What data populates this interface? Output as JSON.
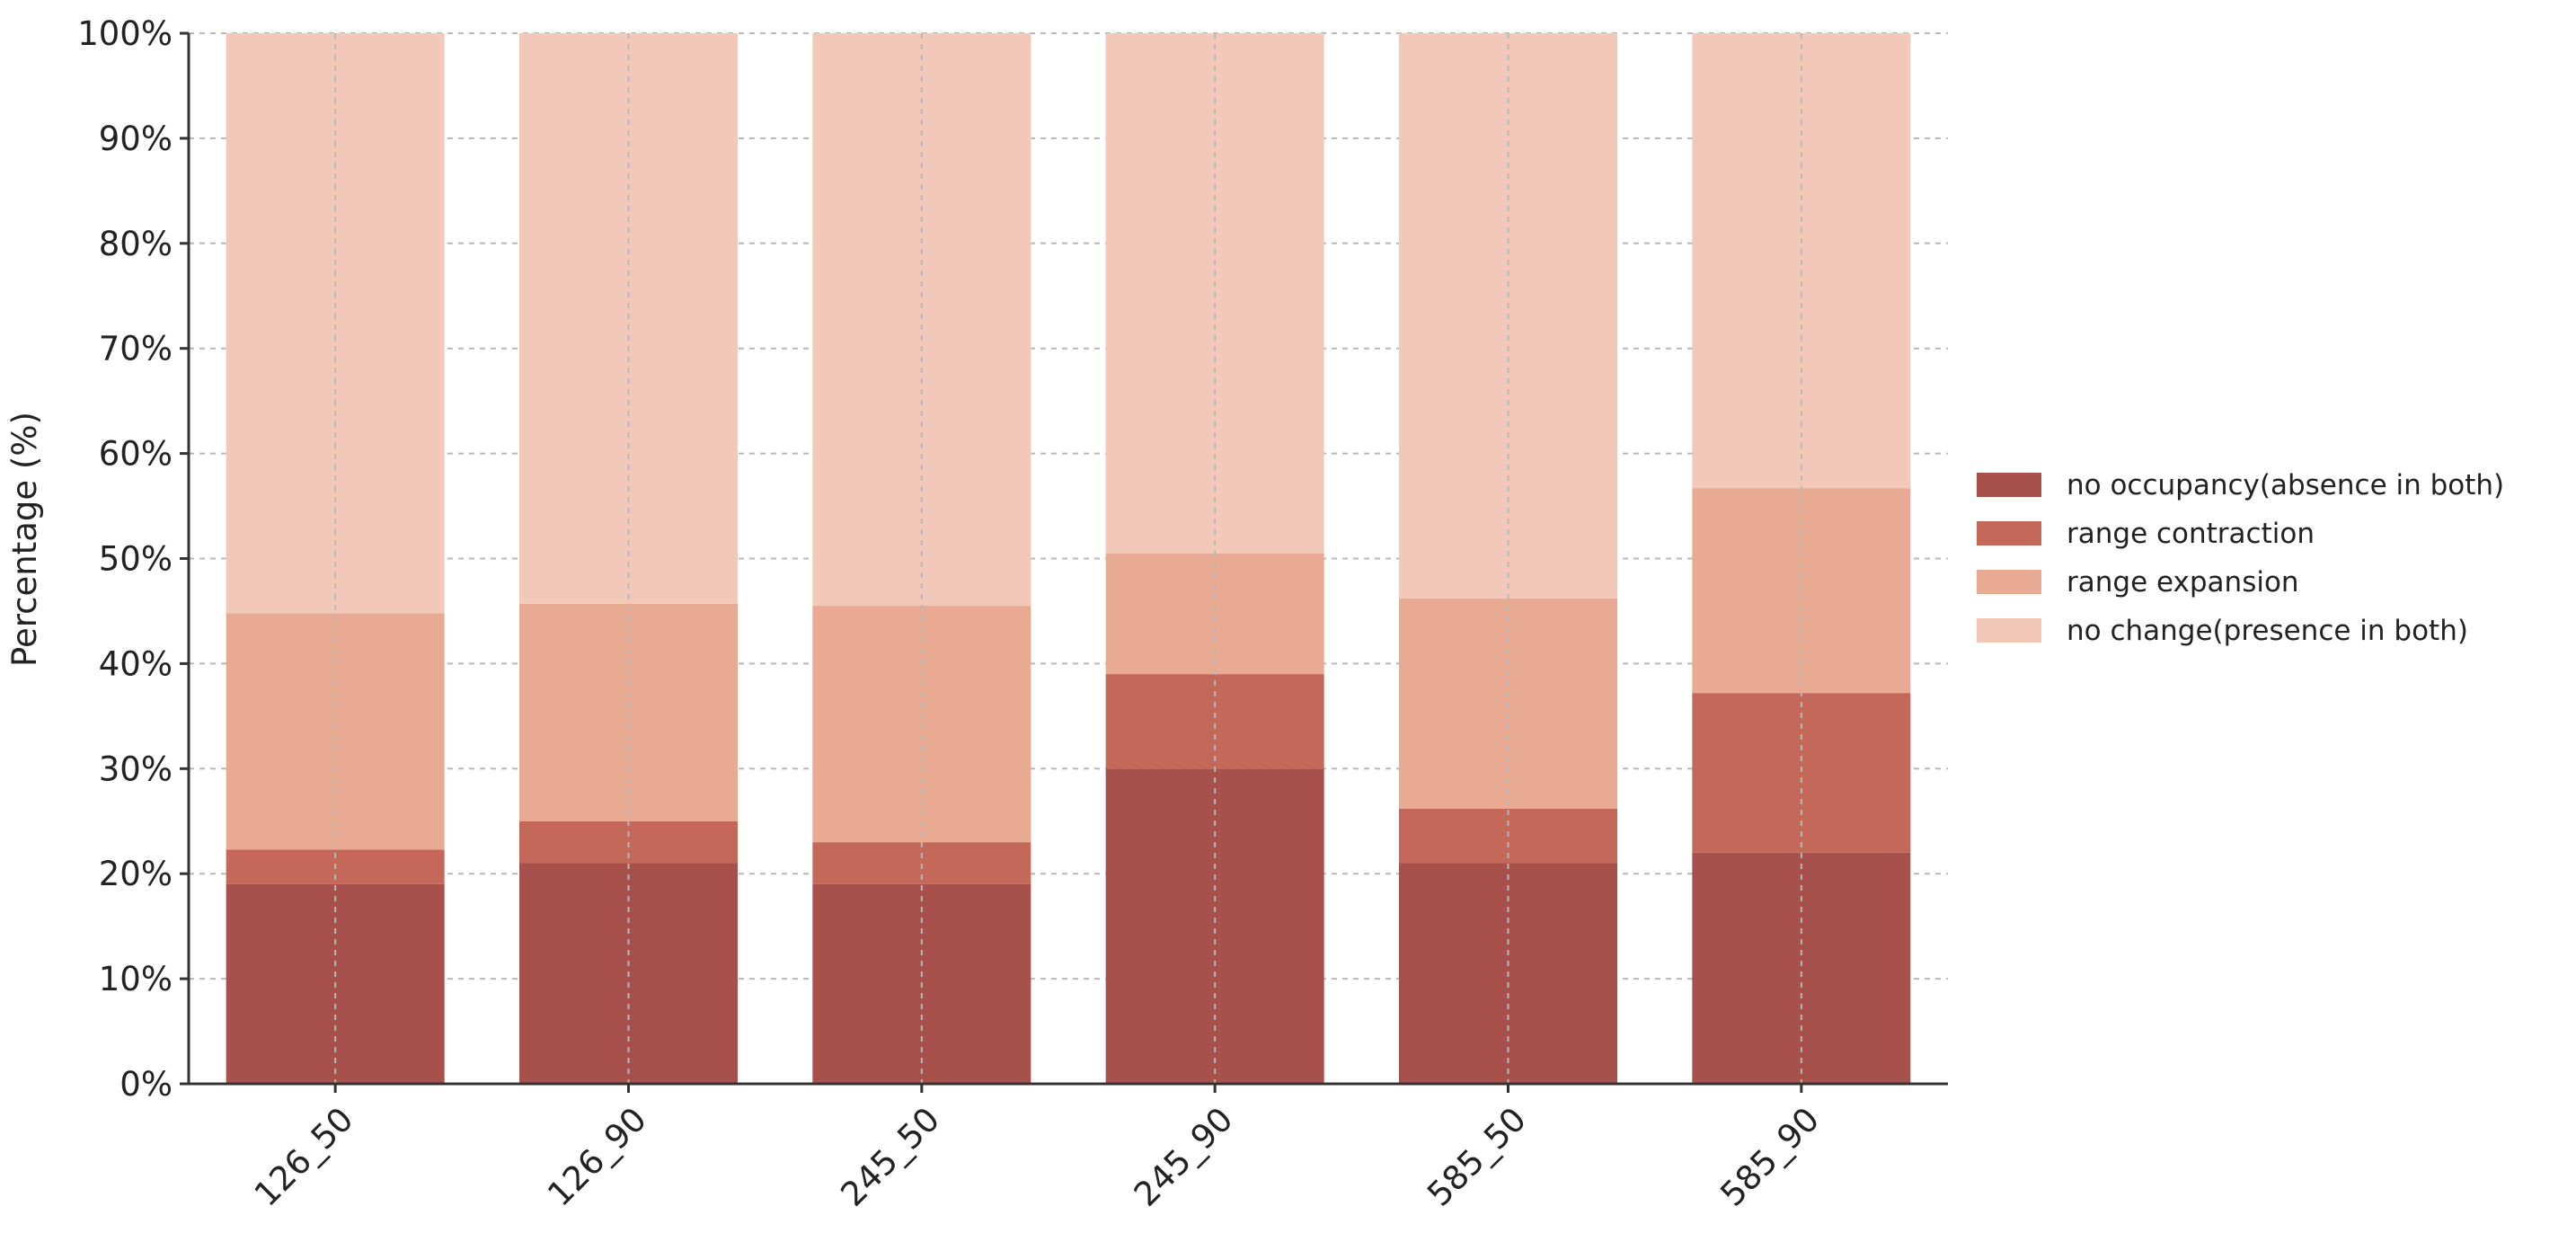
{
  "chart_data": {
    "type": "bar",
    "stacked": true,
    "categories": [
      "126_50",
      "126_90",
      "245_50",
      "245_90",
      "585_50",
      "585_90"
    ],
    "series": [
      {
        "name": "no occupancy(absence in both)",
        "color": "#a8504c",
        "values": [
          19.0,
          21.0,
          19.0,
          30.0,
          21.0,
          22.0
        ]
      },
      {
        "name": "range contraction",
        "color": "#c4685a",
        "values": [
          3.3,
          4.0,
          4.0,
          9.0,
          5.2,
          15.2
        ]
      },
      {
        "name": "range expansion",
        "color": "#e8aa92",
        "values": [
          22.5,
          20.7,
          22.5,
          11.5,
          20.0,
          19.5
        ]
      },
      {
        "name": "no change(presence in both)",
        "color": "#f2c9b8",
        "values": [
          55.2,
          54.3,
          54.5,
          49.5,
          53.8,
          43.3
        ]
      }
    ],
    "ylabel": "Percentage (%)",
    "xlabel": "",
    "ylim": [
      0,
      100
    ],
    "yticks": [
      "0%",
      "10%",
      "20%",
      "30%",
      "40%",
      "50%",
      "60%",
      "70%",
      "80%",
      "90%",
      "100%"
    ],
    "grid": true,
    "legend_position": "right"
  }
}
